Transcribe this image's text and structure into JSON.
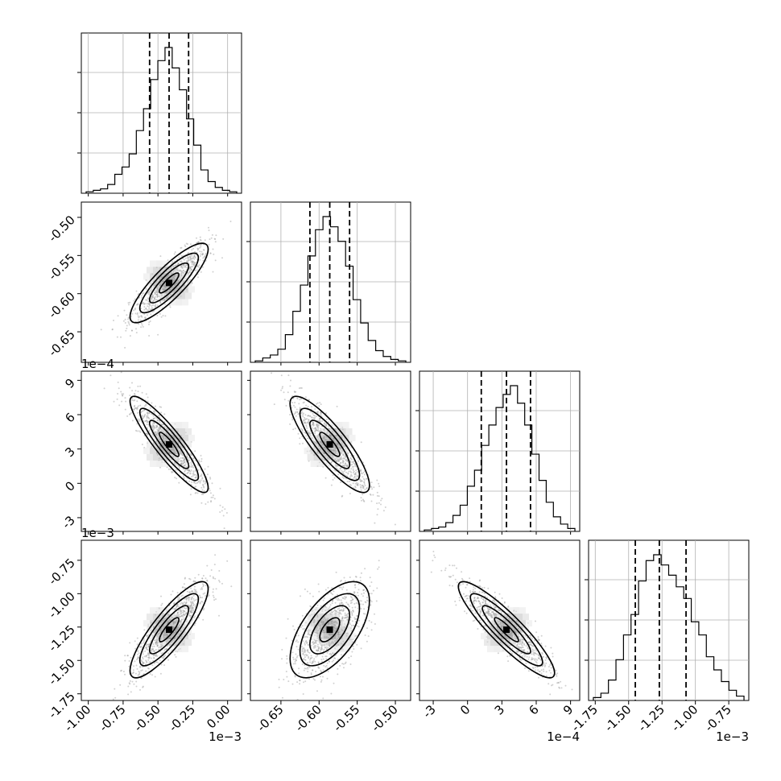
{
  "chart_data": {
    "type": "corner",
    "parameters": [
      {
        "range": [
          -1.05,
          0.1
        ],
        "ticks": [
          "-1.00",
          "-0.75",
          "-0.50",
          "-0.25",
          "0.00"
        ],
        "tick_values": [
          -1.0,
          -0.75,
          -0.5,
          -0.25,
          0.0
        ],
        "offset_label": "1e−3",
        "quantiles": [
          -0.56,
          -0.42,
          -0.28
        ]
      },
      {
        "range": [
          -0.69,
          -0.48
        ],
        "ticks": [
          "-0.65",
          "-0.60",
          "-0.55",
          "-0.50"
        ],
        "tick_values": [
          -0.65,
          -0.6,
          -0.55,
          -0.5
        ],
        "offset_label": "",
        "quantiles": [
          -0.612,
          -0.586,
          -0.56
        ]
      },
      {
        "range": [
          -4.2,
          9.8
        ],
        "ticks": [
          "-3",
          "0",
          "3",
          "6",
          "9"
        ],
        "tick_values": [
          -3,
          0,
          3,
          6,
          9
        ],
        "offset_label": "1e−4",
        "quantiles": [
          1.2,
          3.4,
          5.5
        ]
      },
      {
        "range": [
          -1.8,
          -0.6
        ],
        "ticks": [
          "-1.75",
          "-1.50",
          "-1.25",
          "-1.00",
          "-0.75"
        ],
        "tick_values": [
          -1.75,
          -1.5,
          -1.25,
          -1.0,
          -0.75
        ],
        "offset_label": "1e−3",
        "quantiles": [
          -1.45,
          -1.27,
          -1.07
        ]
      }
    ],
    "histograms": [
      {
        "values": [
          0.01,
          0.02,
          0.03,
          0.06,
          0.13,
          0.18,
          0.27,
          0.43,
          0.58,
          0.78,
          0.91,
          1.0,
          0.86,
          0.71,
          0.51,
          0.33,
          0.16,
          0.08,
          0.04,
          0.02,
          0.01
        ]
      },
      {
        "values": [
          0.01,
          0.03,
          0.05,
          0.09,
          0.19,
          0.35,
          0.53,
          0.73,
          0.91,
          1.0,
          0.93,
          0.83,
          0.66,
          0.43,
          0.27,
          0.15,
          0.08,
          0.04,
          0.02,
          0.01
        ]
      },
      {
        "values": [
          0.01,
          0.02,
          0.03,
          0.06,
          0.11,
          0.18,
          0.31,
          0.42,
          0.59,
          0.73,
          0.85,
          0.94,
          1.0,
          0.88,
          0.73,
          0.53,
          0.35,
          0.2,
          0.1,
          0.05,
          0.02
        ]
      },
      {
        "values": [
          0.02,
          0.05,
          0.14,
          0.28,
          0.45,
          0.59,
          0.82,
          0.96,
          1.0,
          0.93,
          0.86,
          0.78,
          0.7,
          0.54,
          0.45,
          0.3,
          0.21,
          0.13,
          0.07,
          0.03
        ]
      }
    ],
    "pairs": [
      {
        "row": 1,
        "col": 0,
        "cx": -0.42,
        "cy": -0.586,
        "rho": 0.85
      },
      {
        "row": 2,
        "col": 0,
        "cx": -0.42,
        "cy": 3.4,
        "rho": -0.9
      },
      {
        "row": 2,
        "col": 1,
        "cx": -0.586,
        "cy": 3.4,
        "rho": -0.85
      },
      {
        "row": 3,
        "col": 0,
        "cx": -0.42,
        "cy": -1.27,
        "rho": 0.85
      },
      {
        "row": 3,
        "col": 1,
        "cx": -0.586,
        "cy": -1.27,
        "rho": 0.6
      },
      {
        "row": 3,
        "col": 2,
        "cx": 3.4,
        "cy": -1.27,
        "rho": -0.9
      }
    ],
    "sigma": [
      0.14,
      0.026,
      2.1,
      0.18
    ],
    "grid": true
  }
}
